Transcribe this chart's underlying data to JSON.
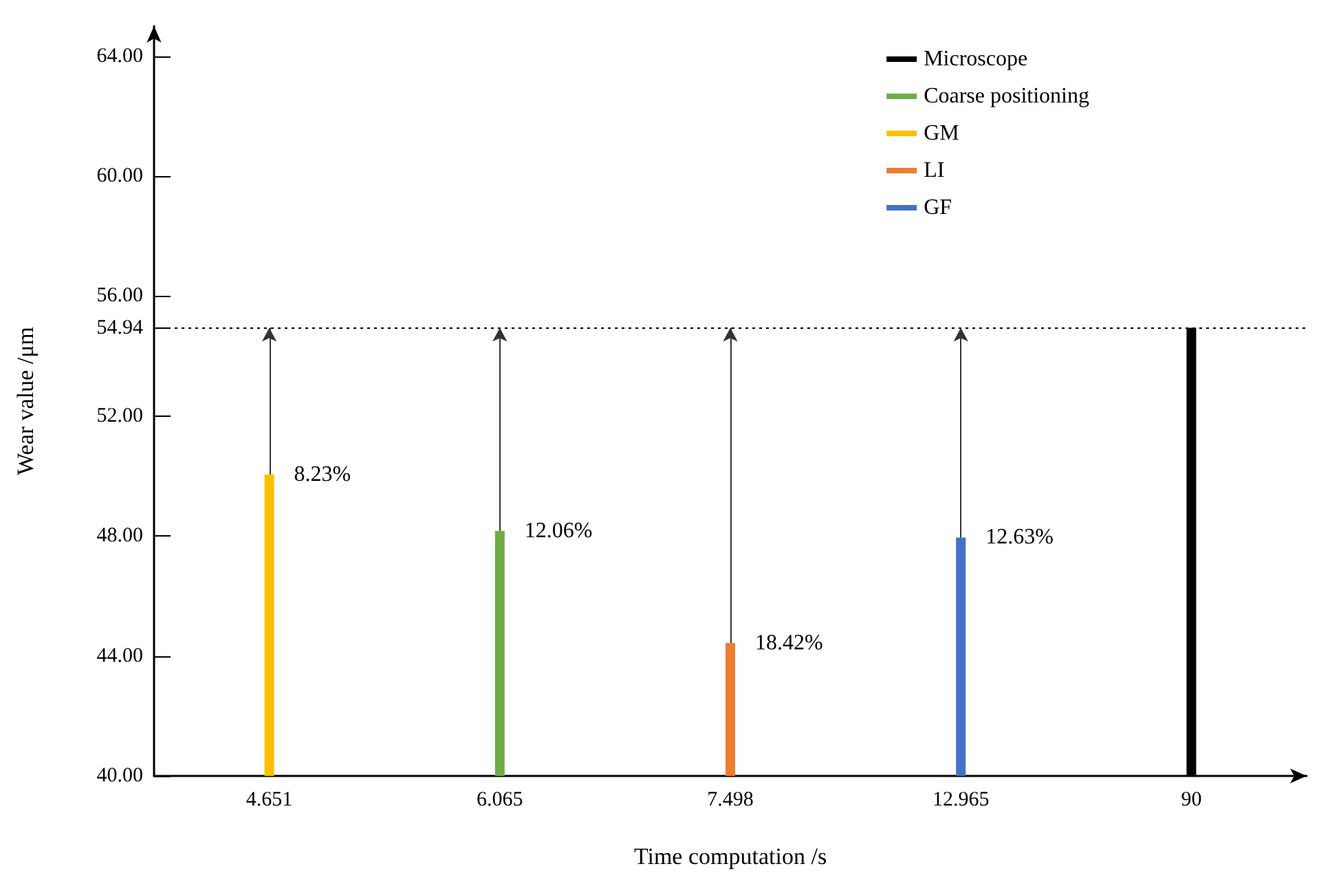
{
  "chart_data": {
    "type": "bar",
    "xlabel": "Time computation /s",
    "ylabel": "Wear value /μm",
    "categories": [
      "4.651",
      "6.065",
      "7.498",
      "12.965",
      "90"
    ],
    "series": [
      {
        "name": "Microscope",
        "color": "#000000",
        "values": [
          null,
          null,
          null,
          null,
          54.94
        ]
      },
      {
        "name": "Coarse positioning",
        "color": "#70ad47",
        "values": [
          null,
          48.17,
          null,
          null,
          null
        ]
      },
      {
        "name": "GM",
        "color": "#ffc000",
        "values": [
          50.05,
          null,
          null,
          null,
          null
        ]
      },
      {
        "name": "LI",
        "color": "#ed7d31",
        "values": [
          null,
          null,
          44.43,
          null,
          null
        ]
      },
      {
        "name": "GF",
        "color": "#4472c4",
        "values": [
          null,
          null,
          null,
          47.95,
          null
        ]
      }
    ],
    "ylim": [
      40,
      65
    ],
    "yticks": [
      {
        "value": 40,
        "label": "40.00"
      },
      {
        "value": 44,
        "label": "44.00"
      },
      {
        "value": 48,
        "label": "48.00"
      },
      {
        "value": 52,
        "label": "52.00"
      },
      {
        "value": 54.94,
        "label": "54.94"
      },
      {
        "value": 56,
        "label": "56.00"
      },
      {
        "value": 60,
        "label": "60.00"
      },
      {
        "value": 64,
        "label": "64.00"
      }
    ],
    "ref_lines": [
      {
        "axis": "y",
        "value": 54.94,
        "line_style": "dotted",
        "color": "#000000"
      }
    ],
    "annotations": [
      {
        "text": "8.23%",
        "x": "4.651",
        "y": 50.05
      },
      {
        "text": "12.06%",
        "x": "6.065",
        "y": 48.17
      },
      {
        "text": "18.42%",
        "x": "7.498",
        "y": 44.43
      },
      {
        "text": "12.63%",
        "x": "12.965",
        "y": 47.95
      }
    ],
    "legend": "top right",
    "grid": false
  }
}
